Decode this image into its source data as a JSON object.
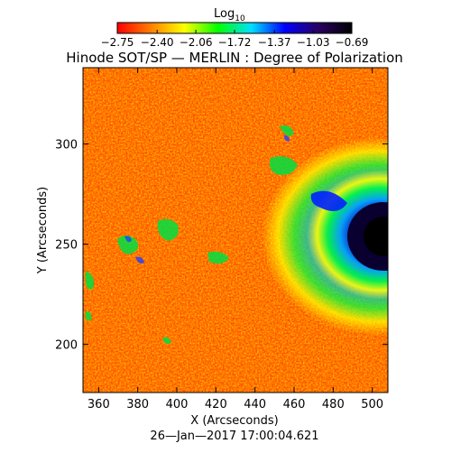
{
  "colorbar": {
    "label_main": "Log",
    "label_sub": "10",
    "tick_labels": [
      "−2.75",
      "−2.40",
      "−2.06",
      "−1.72",
      "−1.37",
      "−1.03",
      "−0.69"
    ],
    "ticks": [
      -2.75,
      -2.4,
      -2.06,
      -1.72,
      -1.37,
      -1.03,
      -0.69
    ],
    "range": [
      -2.75,
      -0.69
    ],
    "colors": [
      "#ff0000",
      "#ff7f00",
      "#ffff00",
      "#00ff00",
      "#00e0ff",
      "#0000ff",
      "#2a0060",
      "#000000"
    ]
  },
  "title": "Hinode SOT/SP — MERLIN : Degree of Polarization",
  "x_axis": {
    "label": "X (Arcseconds)",
    "ticks": [
      360,
      380,
      400,
      420,
      440,
      460,
      480,
      500
    ],
    "range": [
      352,
      508
    ]
  },
  "y_axis": {
    "label": "Y (Arcseconds)",
    "ticks": [
      200,
      250,
      300
    ],
    "range": [
      176,
      338
    ]
  },
  "timestamp": "26—Jan—2017 17:00:04.621"
}
